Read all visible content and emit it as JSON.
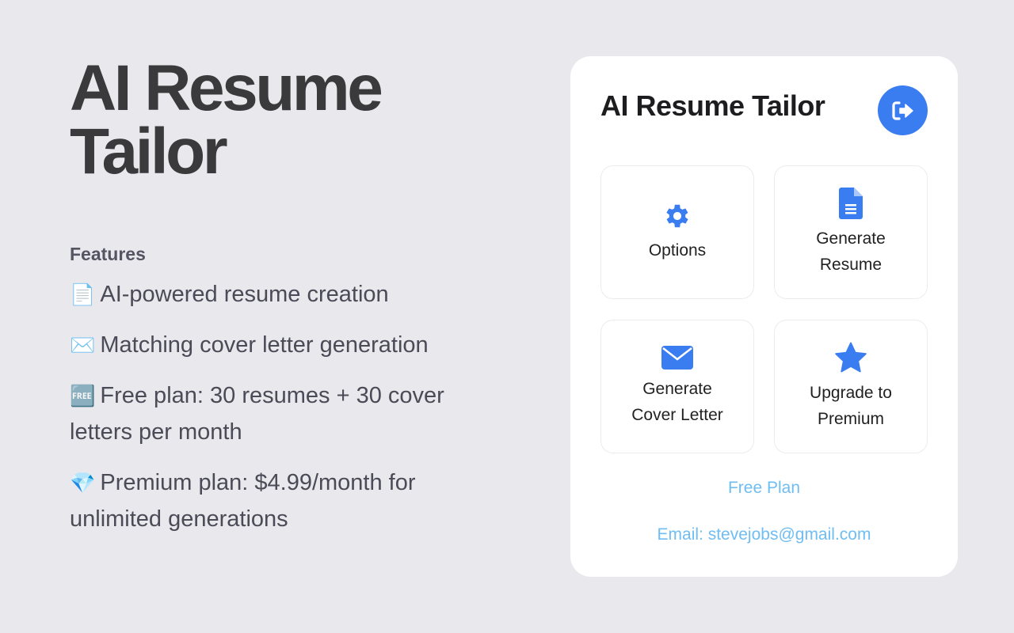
{
  "hero": {
    "title": "AI Resume Tailor"
  },
  "features": {
    "heading": "Features",
    "items": [
      {
        "emoji": "📄",
        "text": "AI-powered resume creation"
      },
      {
        "emoji": "✉️",
        "text": "Matching cover letter generation"
      },
      {
        "emoji": "🆓",
        "text": "Free plan: 30 resumes + 30 cover letters per month"
      },
      {
        "emoji": "💎",
        "text": "Premium plan: $4.99/month for unlimited generations"
      }
    ]
  },
  "popup": {
    "title": "AI Resume Tailor",
    "logout_icon": "sign-out-icon",
    "accent": "#3a7df0",
    "tiles": [
      {
        "label": "Options",
        "icon": "gear-icon"
      },
      {
        "label": "Generate Resume",
        "icon": "document-icon"
      },
      {
        "label": "Generate Cover Letter",
        "icon": "envelope-icon"
      },
      {
        "label": "Upgrade to Premium",
        "icon": "star-icon"
      }
    ],
    "plan": "Free Plan",
    "email": "Email: stevejobs@gmail.com"
  }
}
